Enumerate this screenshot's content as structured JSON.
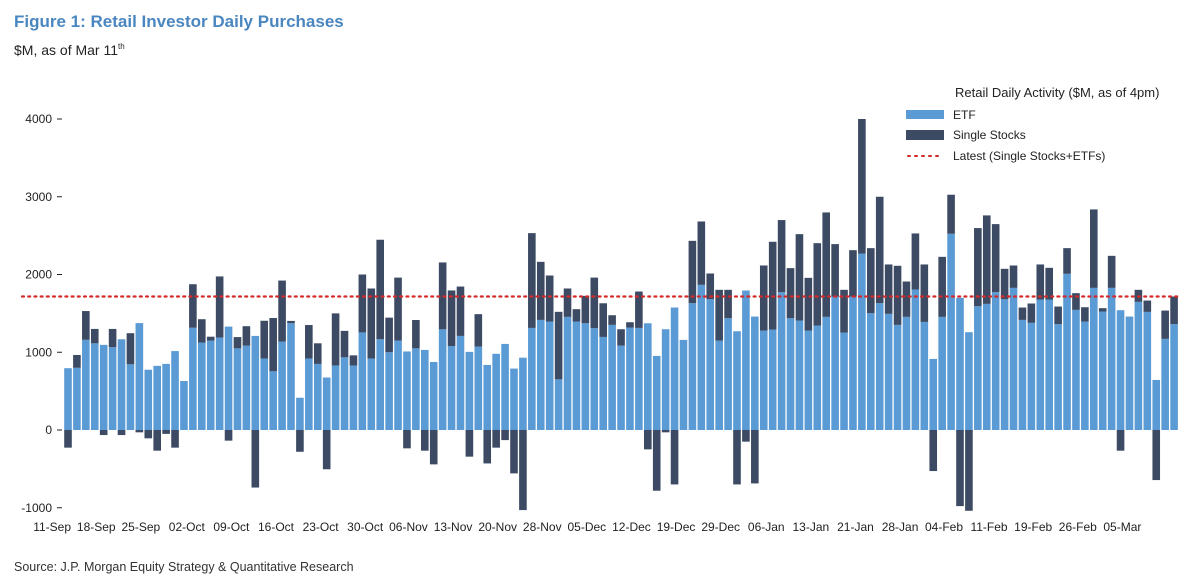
{
  "figure": {
    "title": "Figure 1: Retail Investor Daily Purchases",
    "subtitle_main": "$M, as of Mar 11",
    "subtitle_sup": "th",
    "source": "Source: J.P. Morgan Equity Strategy & Quantitative Research"
  },
  "colors": {
    "title": "#4a86c0",
    "etf": "#5b9bd5",
    "single_stocks": "#3c4a63",
    "latest": "#d42a2a"
  },
  "chart_data": {
    "type": "bar",
    "stacked": true,
    "ylim": [
      -1000,
      4000
    ],
    "yticks": [
      -1000,
      0,
      1000,
      2000,
      3000,
      4000
    ],
    "grid": false,
    "legend_placement": "top-right",
    "legend_title": "Retail Daily Activity ($M, as of 4pm)",
    "xtick_labels": [
      "11-Sep",
      "18-Sep",
      "25-Sep",
      "02-Oct",
      "09-Oct",
      "16-Oct",
      "23-Oct",
      "30-Oct",
      "06-Nov",
      "13-Nov",
      "20-Nov",
      "28-Nov",
      "05-Dec",
      "12-Dec",
      "19-Dec",
      "29-Dec",
      "06-Jan",
      "13-Jan",
      "21-Jan",
      "28-Jan",
      "04-Feb",
      "11-Feb",
      "19-Feb",
      "26-Feb",
      "05-Mar"
    ],
    "series": [
      {
        "name": "ETF",
        "values": [
          795,
          800,
          1160,
          1115,
          1095,
          1065,
          1167,
          845,
          1375,
          775,
          825,
          850,
          1015,
          630,
          1315,
          1125,
          1150,
          1190,
          1330,
          1050,
          1085,
          1210,
          920,
          755,
          1137,
          1373,
          415,
          920,
          850,
          675,
          830,
          935,
          830,
          1255,
          920,
          1167,
          1000,
          1150,
          1010,
          1050,
          1030,
          875,
          1295,
          1080,
          1210,
          1005,
          1073,
          837,
          980,
          1107,
          790,
          930,
          1313,
          1416,
          1395,
          652,
          1455,
          1395,
          1373,
          1310,
          1197,
          1352,
          1085,
          1318,
          1313,
          1373,
          953,
          1296,
          1575,
          1159,
          1631,
          1867,
          1682,
          1150,
          1438,
          1270,
          1794,
          1459,
          1279,
          1292,
          1773,
          1438,
          1408,
          1279,
          1343,
          1455,
          1717,
          1253,
          1717,
          2270,
          1502,
          1631,
          1494,
          1352,
          1455,
          1807,
          1390,
          914,
          1455,
          2524,
          1700,
          1258,
          1592,
          1622,
          1773,
          1682,
          1828,
          1416,
          1378,
          1678,
          1678,
          1361,
          2009,
          1545,
          1395,
          1828,
          1524,
          1828,
          1541,
          1459,
          1648,
          1519,
          644,
          1172,
          1361
        ]
      },
      {
        "name": "Single Stocks",
        "values": [
          -227,
          165,
          370,
          185,
          -65,
          235,
          -65,
          400,
          -30,
          -107,
          -266,
          -50,
          -227,
          0,
          560,
          300,
          50,
          785,
          -137,
          145,
          250,
          -740,
          485,
          685,
          785,
          30,
          -280,
          430,
          265,
          -505,
          670,
          340,
          130,
          745,
          900,
          1280,
          445,
          810,
          -236,
          365,
          -266,
          -442,
          860,
          715,
          635,
          -343,
          417,
          -430,
          -227,
          -130,
          -558,
          -1030,
          1219,
          747,
          592,
          868,
          365,
          159,
          352,
          650,
          433,
          124,
          211,
          68,
          468,
          -249,
          -781,
          -30,
          -700,
          0,
          802,
          815,
          331,
          653,
          365,
          -700,
          -150,
          -687,
          837,
          1129,
          927,
          644,
          1111,
          678,
          1060,
          1343,
          674,
          550,
          596,
          1730,
          837,
          1369,
          635,
          760,
          455,
          721,
          739,
          -528,
          772,
          502,
          -979,
          -1039,
          1005,
          1138,
          875,
          391,
          288,
          159,
          249,
          451,
          408,
          227,
          330,
          215,
          184,
          1009,
          43,
          412,
          -266,
          0,
          155,
          146,
          -644,
          364,
          356
        ]
      }
    ],
    "reference_line": {
      "name": "Latest (Single Stocks+ETFs)",
      "value": 1717,
      "style": "dotted"
    }
  }
}
